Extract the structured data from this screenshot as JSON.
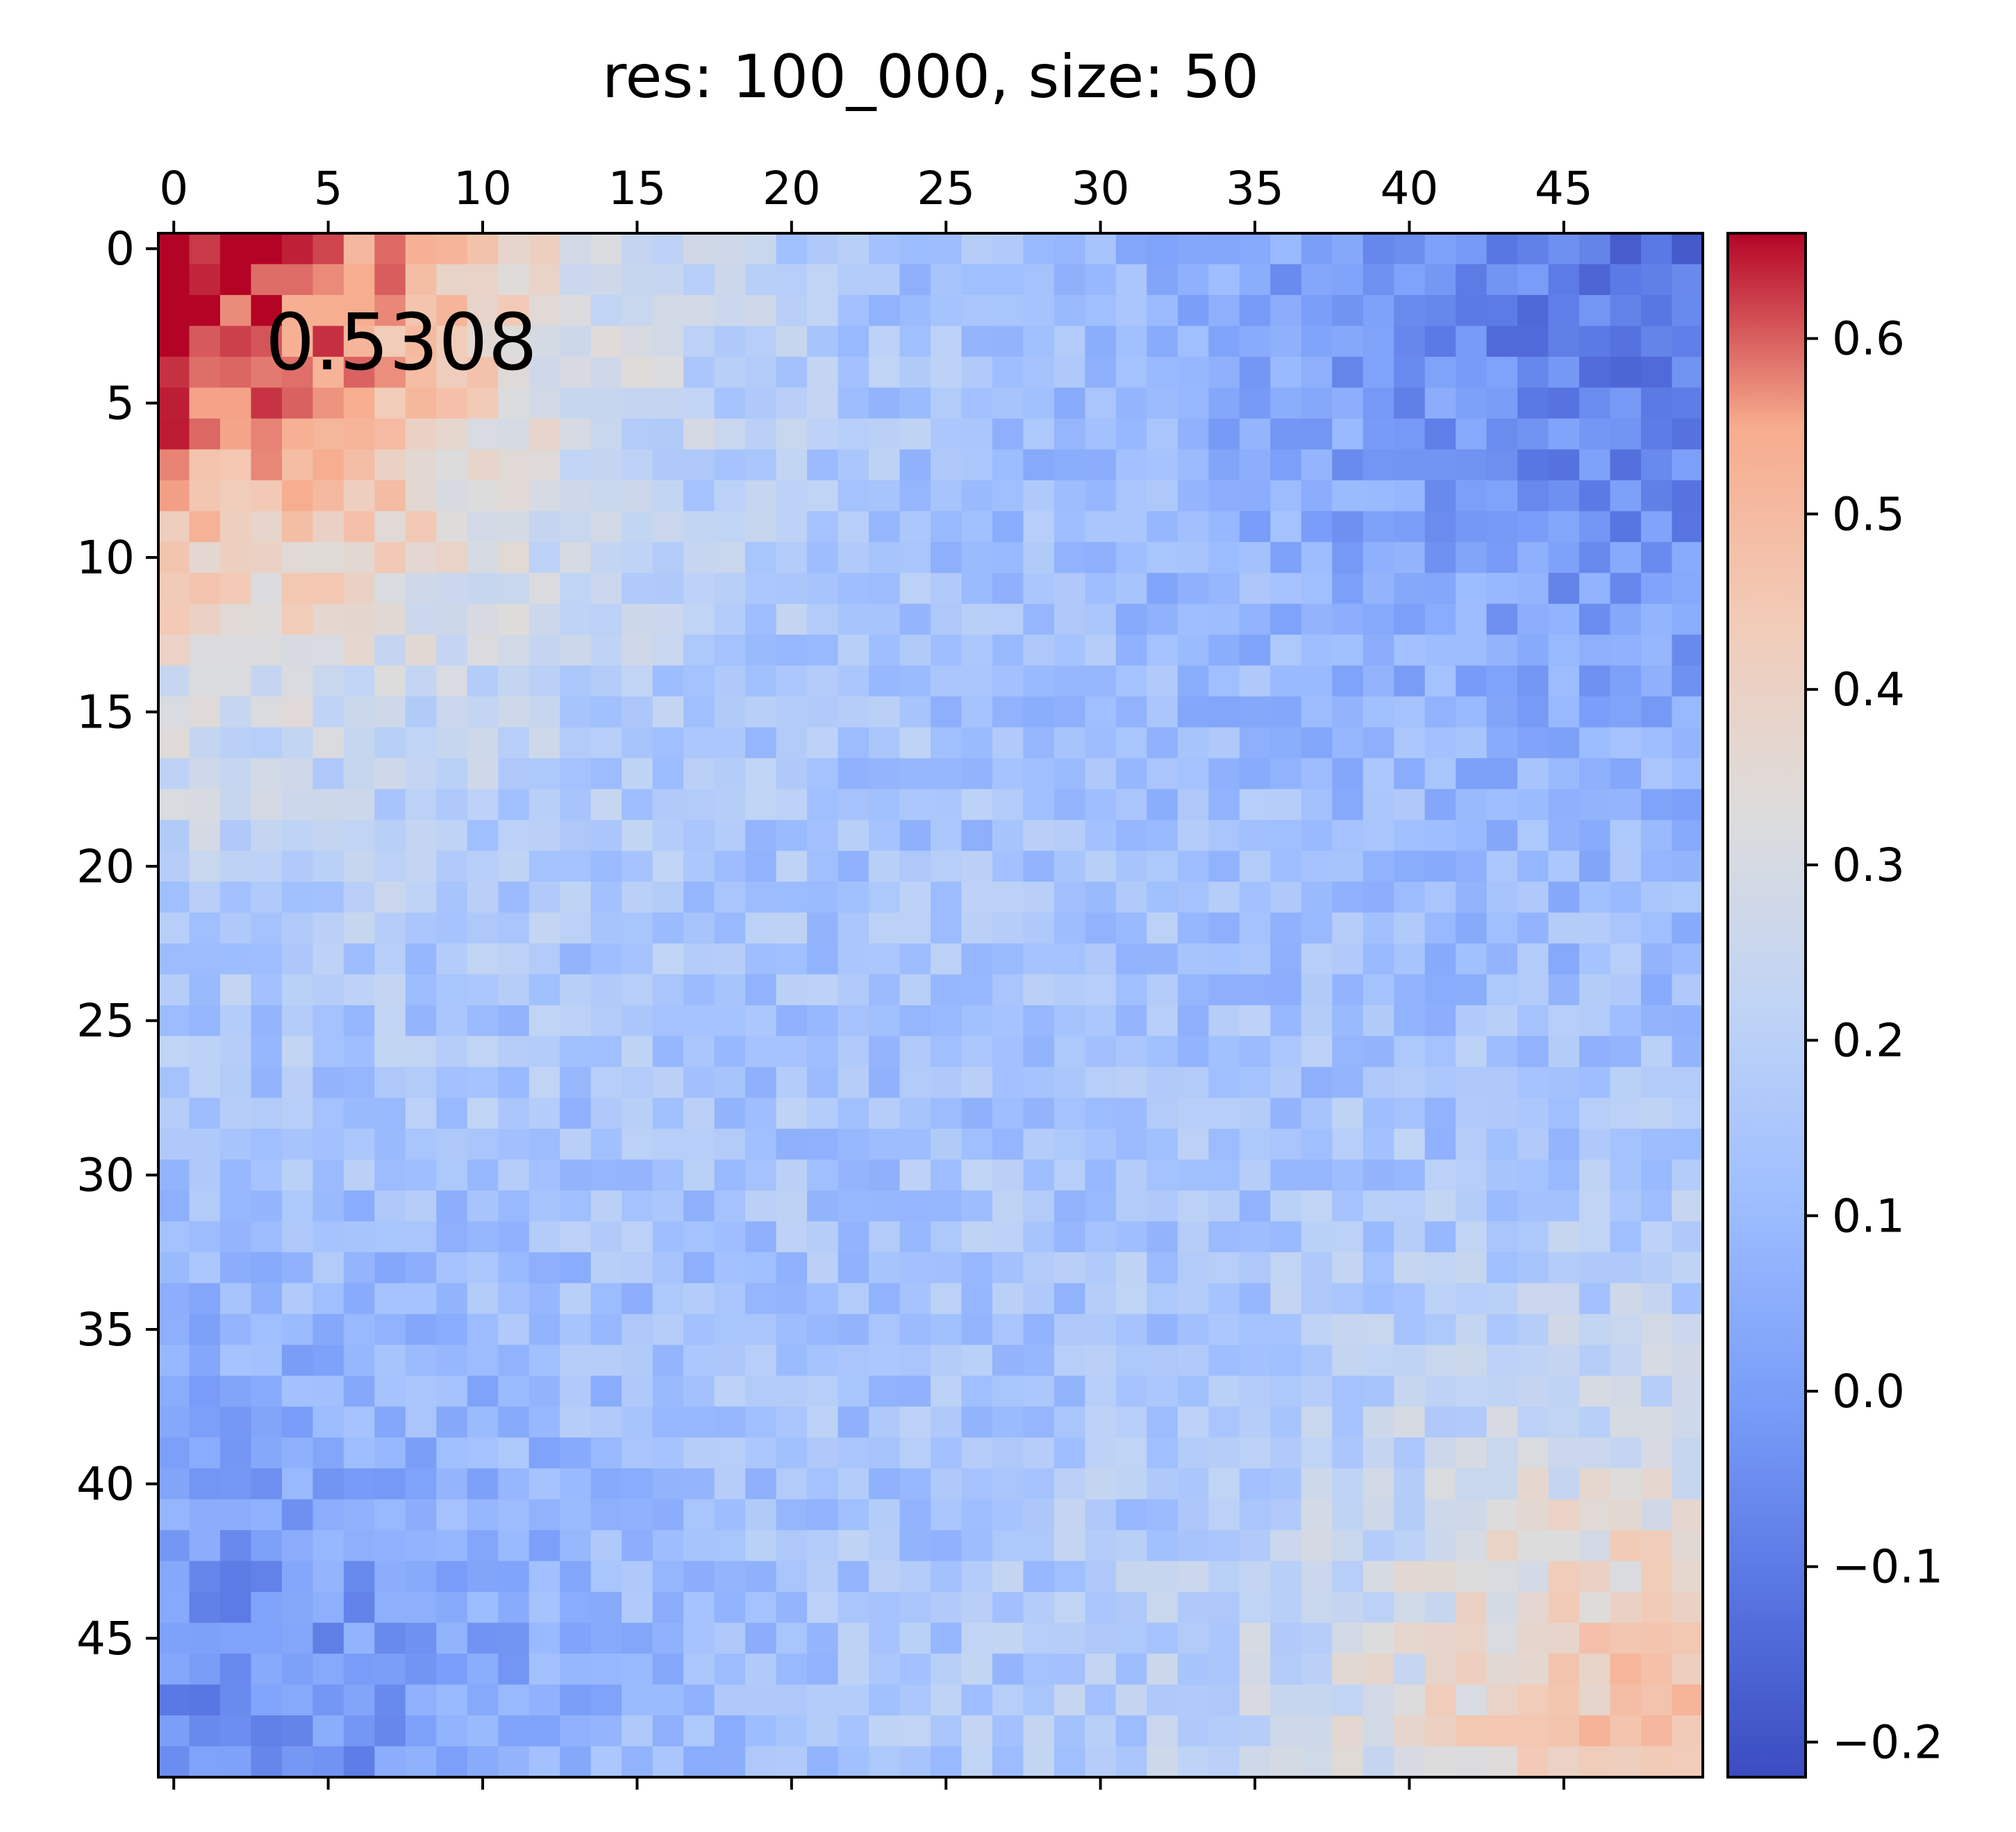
{
  "chart_data": {
    "type": "heatmap",
    "title": "res: 100_000, size: 50",
    "annotation": "0.5308",
    "colormap": "coolwarm",
    "rows": 50,
    "cols": 50,
    "vmin": -0.22,
    "vmax": 0.66,
    "xticks": [
      0,
      5,
      10,
      15,
      20,
      25,
      30,
      35,
      40,
      45
    ],
    "yticks": [
      0,
      5,
      10,
      15,
      20,
      25,
      30,
      35,
      40,
      45
    ],
    "xtick_labels": [
      "0",
      "5",
      "10",
      "15",
      "20",
      "25",
      "30",
      "35",
      "40",
      "45"
    ],
    "ytick_labels": [
      "0",
      "5",
      "10",
      "15",
      "20",
      "25",
      "30",
      "35",
      "40",
      "45"
    ],
    "colorbar_ticks": [
      -0.2,
      -0.1,
      0.0,
      0.1,
      0.2,
      0.3,
      0.4,
      0.5,
      0.6
    ],
    "colorbar_tick_labels": [
      "−0.2",
      "−0.1",
      "0.0",
      "0.1",
      "0.2",
      "0.3",
      "0.4",
      "0.5",
      "0.6"
    ],
    "x_axis_position": "top",
    "grid": false,
    "block_structure": [
      {
        "rows": [
          0,
          14
        ],
        "cols": [
          0,
          14
        ],
        "value": 0.45,
        "note": "upper-left domain"
      },
      {
        "rows": [
          0,
          14
        ],
        "cols": [
          36,
          49
        ],
        "value": -0.1
      },
      {
        "rows": [
          34,
          49
        ],
        "cols": [
          0,
          14
        ],
        "value": -0.08
      },
      {
        "rows": [
          36,
          49
        ],
        "cols": [
          38,
          49
        ],
        "value": 0.36,
        "note": "lower-right domain"
      }
    ]
  }
}
